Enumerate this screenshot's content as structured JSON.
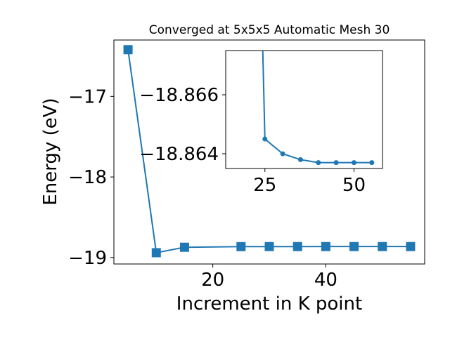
{
  "chart_data": [
    {
      "type": "line",
      "title": "Converged at 5x5x5 Automatic Mesh 30",
      "xlabel": "Increment in K point",
      "ylabel": "Energy (eV)",
      "xlim": [
        2.5,
        57.5
      ],
      "ylim": [
        -19.08,
        -16.3
      ],
      "xticks": [
        20,
        40
      ],
      "xtick_labels": [
        "20",
        "40"
      ],
      "yticks": [
        -17,
        -18,
        -19
      ],
      "ytick_labels": [
        "−17",
        "−18",
        "−19"
      ],
      "marker": "square",
      "color": "#1f77b4",
      "x": [
        5,
        10,
        15,
        25,
        30,
        35,
        40,
        45,
        50,
        55
      ],
      "y": [
        -16.42,
        -18.94,
        -18.8725,
        -18.8645,
        -18.8638,
        -18.8638,
        -18.8637,
        -18.8637,
        -18.8637,
        -18.8637
      ]
    },
    {
      "type": "line",
      "title": "",
      "xlabel": "",
      "ylabel": "",
      "xlim": [
        14,
        58
      ],
      "ylim": [
        -18.8635,
        -18.8675
      ],
      "xticks": [
        25,
        50
      ],
      "xtick_labels": [
        "25",
        "50"
      ],
      "yticks": [
        -18.866,
        -18.864
      ],
      "ytick_labels": [
        "−18.866",
        "−18.864"
      ],
      "marker": "circle",
      "color": "#1f77b4",
      "x": [
        25,
        30,
        35,
        40,
        45,
        50,
        55
      ],
      "y": [
        -18.8645,
        -18.864,
        -18.8638,
        -18.8637,
        -18.8637,
        -18.8637,
        -18.8637
      ]
    }
  ]
}
